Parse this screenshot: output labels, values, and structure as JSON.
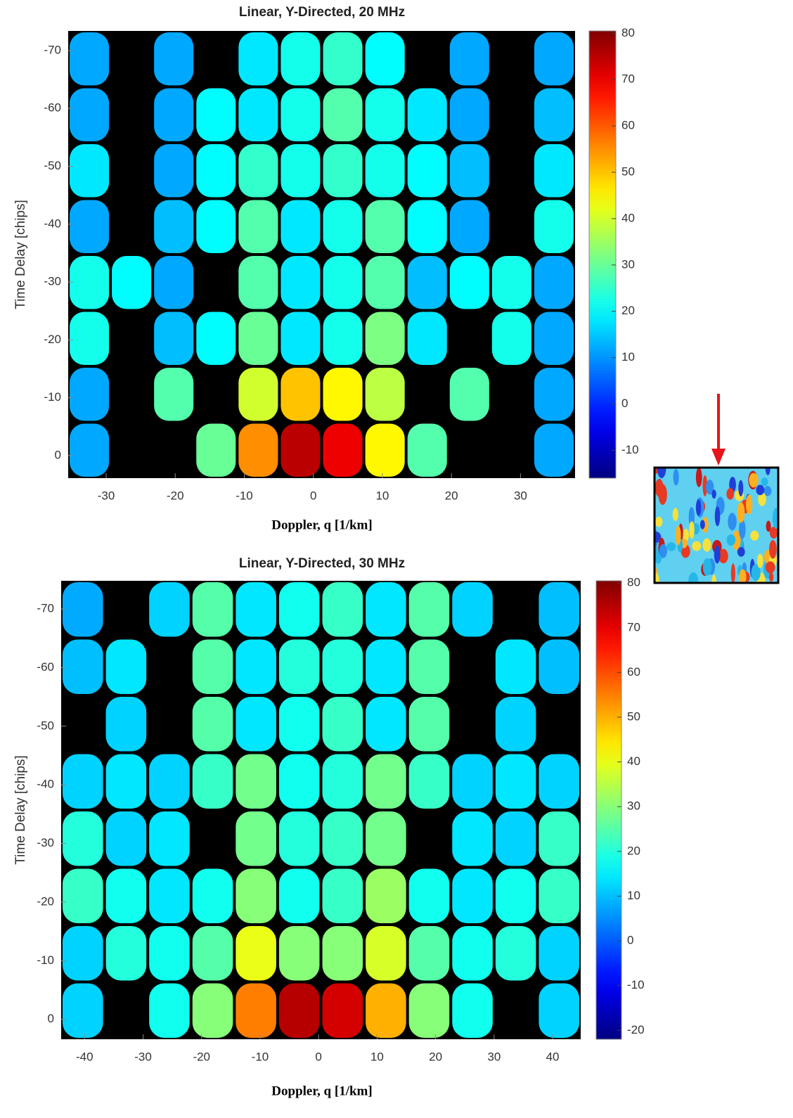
{
  "chart_data": [
    {
      "type": "heatmap",
      "title": "Linear, Y-Directed, 20 MHz",
      "x_label": "Doppler, q [1/km]",
      "y_label": "Time Delay [chips]",
      "xlim": [
        -35.5,
        37.9
      ],
      "xticks": [
        -30,
        -20,
        -10,
        0,
        10,
        20,
        30
      ],
      "ylim": [
        3.9,
        -73.4
      ],
      "yticks": [
        0,
        -10,
        -20,
        -30,
        -40,
        -50,
        -60,
        -70
      ],
      "colormap": "jet",
      "clim": [
        -16,
        80.5
      ],
      "cticks": [
        -10,
        0,
        10,
        20,
        30,
        40,
        50,
        60,
        70,
        80
      ],
      "z": [
        [
          12,
          null,
          12,
          null,
          18,
          22,
          25,
          20,
          null,
          12,
          null,
          12
        ],
        [
          12,
          null,
          12,
          20,
          18,
          22,
          28,
          22,
          18,
          12,
          null,
          14
        ],
        [
          18,
          null,
          12,
          20,
          25,
          22,
          25,
          22,
          20,
          14,
          null,
          18
        ],
        [
          12,
          null,
          14,
          20,
          28,
          18,
          22,
          28,
          20,
          12,
          null,
          22
        ],
        [
          22,
          20,
          12,
          null,
          28,
          18,
          22,
          28,
          14,
          20,
          22,
          12
        ],
        [
          22,
          null,
          14,
          20,
          30,
          18,
          22,
          32,
          18,
          null,
          22,
          12
        ],
        [
          12,
          null,
          28,
          null,
          40,
          50,
          45,
          38,
          null,
          28,
          null,
          12
        ],
        [
          12,
          null,
          null,
          30,
          55,
          75,
          70,
          45,
          28,
          null,
          null,
          12
        ]
      ]
    },
    {
      "type": "heatmap",
      "title": "Linear, Y-Directed, 30 MHz",
      "x_label": "Doppler, q [1/km]",
      "y_label": "Time Delay [chips]",
      "xlim": [
        -44,
        44.8
      ],
      "xticks": [
        -40,
        -30,
        -20,
        -10,
        0,
        10,
        20,
        30,
        40
      ],
      "ylim": [
        3.4,
        -74.8
      ],
      "yticks": [
        0,
        -10,
        -20,
        -30,
        -40,
        -50,
        -60,
        -70
      ],
      "colormap": "jet",
      "clim": [
        -22,
        80.5
      ],
      "cticks": [
        -20,
        -10,
        0,
        10,
        20,
        30,
        40,
        50,
        60,
        70,
        80
      ],
      "z": [
        [
          8,
          null,
          12,
          25,
          14,
          18,
          22,
          14,
          25,
          12,
          null,
          10
        ],
        [
          10,
          14,
          null,
          25,
          14,
          20,
          20,
          14,
          25,
          null,
          14,
          10
        ],
        [
          null,
          12,
          null,
          25,
          14,
          18,
          22,
          14,
          25,
          null,
          12,
          null
        ],
        [
          12,
          14,
          12,
          22,
          28,
          18,
          20,
          28,
          22,
          12,
          14,
          12
        ],
        [
          20,
          12,
          14,
          null,
          28,
          20,
          22,
          28,
          null,
          14,
          12,
          22
        ],
        [
          22,
          18,
          14,
          18,
          30,
          18,
          22,
          32,
          18,
          14,
          18,
          22
        ],
        [
          12,
          20,
          18,
          25,
          40,
          30,
          30,
          38,
          25,
          18,
          20,
          12
        ],
        [
          12,
          null,
          18,
          30,
          55,
          75,
          72,
          50,
          30,
          18,
          null,
          12
        ]
      ]
    }
  ]
}
